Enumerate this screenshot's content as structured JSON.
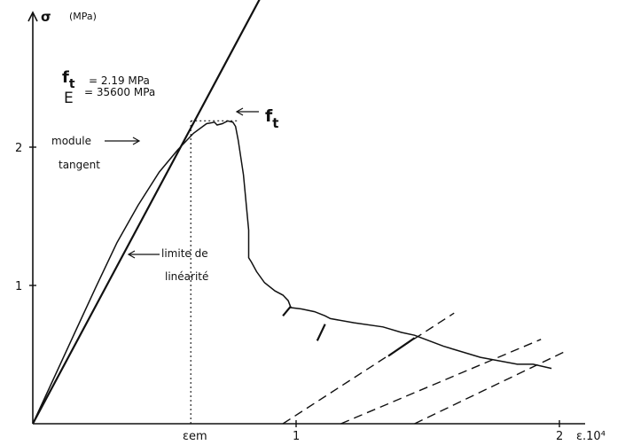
{
  "chart_data": {
    "type": "line",
    "title": "",
    "ylabel_symbol": "σ",
    "ylabel_unit": "(MPa)",
    "xlabel": "ε.10⁴",
    "xlim": [
      0,
      2.1
    ],
    "ylim": [
      0,
      2.8
    ],
    "x_ticks": [
      {
        "value": 1,
        "label": "1"
      },
      {
        "value": 2,
        "label": "2"
      }
    ],
    "y_ticks": [
      {
        "value": 1,
        "label": "1"
      },
      {
        "value": 2,
        "label": "2"
      }
    ],
    "epsilon_em": {
      "x": 0.6,
      "label": "εem"
    },
    "peak_stress": 2.19,
    "properties": {
      "ft_symbol": "f",
      "ft_subscript": "t",
      "ft_value": "= 2.19 MPa",
      "E_symbol": "E",
      "E_value": "= 35600 MPa"
    },
    "annotations": {
      "ft_marker_symbol": "f",
      "ft_marker_subscript": "t",
      "module_line1": "module",
      "module_line2": "tangent",
      "limite_line1": "limite de",
      "limite_line2": "linéarité"
    },
    "series": [
      {
        "type": "envelope",
        "x": [
          0,
          0.08,
          0.16,
          0.24,
          0.32,
          0.4,
          0.48,
          0.55,
          0.61,
          0.66,
          0.69,
          0.7,
          0.72,
          0.74,
          0.76,
          0.77,
          0.78,
          0.8,
          0.82,
          0.82,
          0.83,
          0.85,
          0.88,
          0.92,
          0.95,
          0.97,
          0.98,
          1.02,
          1.07,
          1.11,
          1.13,
          1.22,
          1.33,
          1.4,
          1.45,
          1.56,
          1.7,
          1.84,
          1.9,
          1.97
        ],
        "y": [
          0,
          0.33,
          0.66,
          0.99,
          1.31,
          1.58,
          1.82,
          1.98,
          2.1,
          2.17,
          2.18,
          2.16,
          2.17,
          2.19,
          2.18,
          2.15,
          2.05,
          1.8,
          1.4,
          1.2,
          1.17,
          1.1,
          1.02,
          0.96,
          0.93,
          0.89,
          0.84,
          0.83,
          0.81,
          0.78,
          0.76,
          0.73,
          0.7,
          0.66,
          0.64,
          0.56,
          0.48,
          0.43,
          0.43,
          0.4
        ]
      },
      {
        "type": "unloading_stubs",
        "segments": [
          {
            "x": [
              0.95,
              0.98
            ],
            "y": [
              0.78,
              0.85
            ]
          },
          {
            "x": [
              1.08,
              1.11
            ],
            "y": [
              0.6,
              0.72
            ]
          },
          {
            "x": [
              1.35,
              1.45
            ],
            "y": [
              0.49,
              0.62
            ]
          }
        ]
      },
      {
        "type": "secant_reload",
        "dashed": true,
        "segments": [
          {
            "x": [
              0.95,
              1.6
            ],
            "y": [
              0.0,
              0.8
            ]
          },
          {
            "x": [
              1.17,
              1.93
            ],
            "y": [
              0.0,
              0.61
            ]
          },
          {
            "x": [
              1.45,
              2.03
            ],
            "y": [
              0.0,
              0.53
            ]
          }
        ]
      },
      {
        "type": "tangent_modulus",
        "x": [
          0,
          0.87
        ],
        "y": [
          0,
          3.1
        ]
      }
    ]
  }
}
